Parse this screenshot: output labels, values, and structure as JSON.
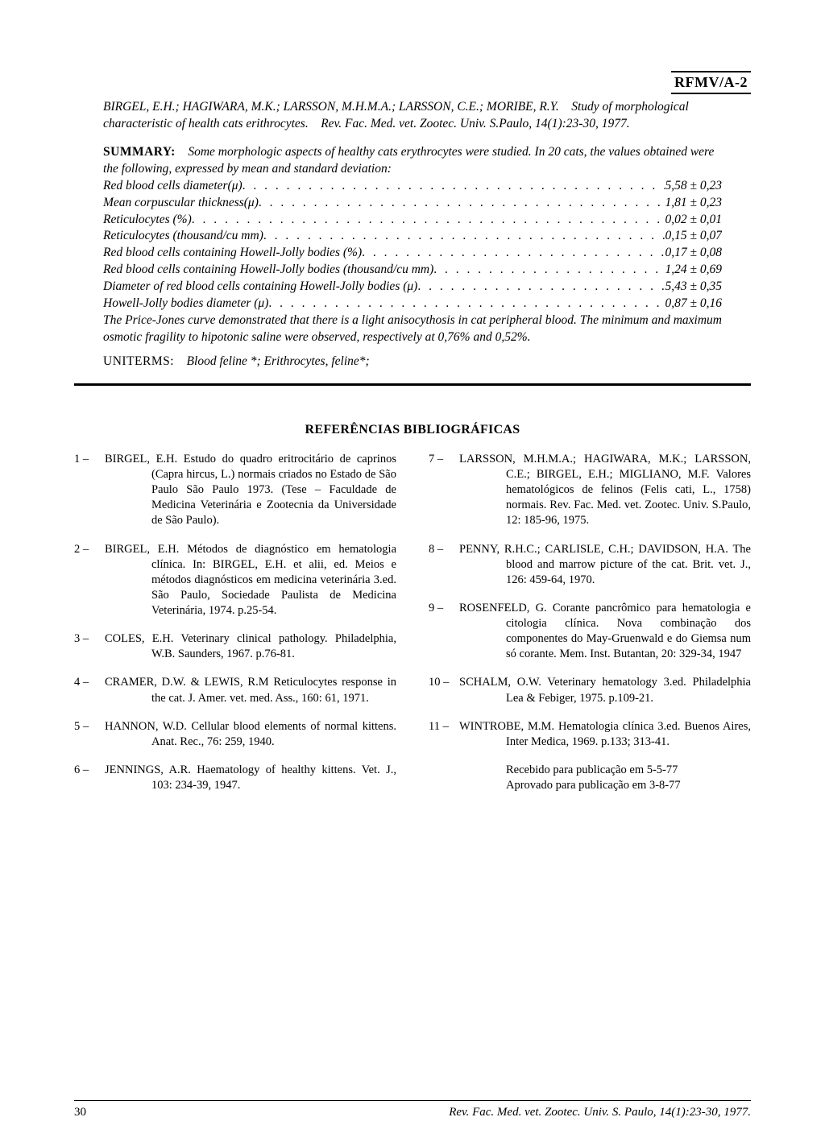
{
  "header": {
    "code": "RFMV/A-2"
  },
  "citation": {
    "authors": "BIRGEL, E.H.; HAGIWARA, M.K.; LARSSON, M.H.M.A.; LARSSON, C.E.; MORIBE, R.Y.",
    "title_line": "Study of morphological characteristic of health cats erithrocytes.",
    "journal_line": "Rev. Fac. Med. vet. Zootec. Univ. S.Paulo, 14(1):23-30, 1977."
  },
  "summary": {
    "label": "SUMMARY:",
    "intro": "Some morphologic aspects of healthy cats erythrocytes were studied. In 20 cats, the values obtained were the following, expressed by mean and standard deviation:",
    "rows": [
      {
        "label": "Red blood cells diameter(μ)",
        "value": "5,58 ± 0,23"
      },
      {
        "label": "Mean corpuscular thickness(μ)",
        "value": "1,81 ± 0,23"
      },
      {
        "label": "Reticulocytes (%)",
        "value": "0,02 ± 0,01"
      },
      {
        "label": "Reticulocytes (thousand/cu mm)",
        "value": "0,15 ± 0,07"
      },
      {
        "label": "Red blood cells containing Howell-Jolly bodies (%)",
        "value": "0,17 ± 0,08"
      },
      {
        "label": "Red blood cells containing Howell-Jolly bodies (thousand/cu mm)",
        "value": "1,24 ± 0,69"
      },
      {
        "label": "Diameter of red blood cells containing Howell-Jolly bodies (μ)",
        "value": "5,43 ± 0,35"
      },
      {
        "label": "Howell-Jolly bodies diameter (μ)",
        "value": "0,87 ± 0,16"
      }
    ],
    "tail": "The Price-Jones curve demonstrated that there is a light anisocythosis in cat peripheral blood. The minimum and maximum osmotic fragility to hipotonic saline were observed, respectively at 0,76% and 0,52%."
  },
  "uniterms": {
    "label": "UNITERMS:",
    "text": "Blood feline *; Erithrocytes, feline*;"
  },
  "refs_title": "REFERÊNCIAS BIBLIOGRÁFICAS",
  "refs_left": [
    {
      "num": "1 –",
      "text": "BIRGEL, E.H.    Estudo do quadro eritrocitário de caprinos (Capra hircus, L.) normais criados no Estado de São Paulo São Paulo 1973.   (Tese – Faculdade de Medicina Veterinária e Zootecnia da Universidade de São Paulo)."
    },
    {
      "num": "2 –",
      "text": "BIRGEL, E.H.    Métodos de diagnóstico em hematologia clínica.  In: BIRGEL, E.H. et alii, ed.   Meios e métodos diagnósticos em medicina veterinária 3.ed. São Paulo, Sociedade Paulista de Medicina Veterinária, 1974. p.25-54."
    },
    {
      "num": "3 –",
      "text": "COLES, E.H.    Veterinary clinical pathology.   Philadelphia, W.B. Saunders, 1967. p.76-81."
    },
    {
      "num": "4 –",
      "text": "CRAMER, D.W. & LEWIS, R.M    Reticulocytes response in the cat.   J. Amer. vet. med. Ass., 160: 61, 1971."
    },
    {
      "num": "5 –",
      "text": "HANNON, W.D.    Cellular blood elements of normal kittens.   Anat. Rec., 76: 259, 1940."
    },
    {
      "num": "6 –",
      "text": "JENNINGS, A.R.    Haematology of healthy kittens.   Vet. J., 103: 234-39, 1947."
    }
  ],
  "refs_right": [
    {
      "num": "7 –",
      "text": "LARSSON, M.H.M.A.; HAGIWARA, M.K.; LARSSON, C.E.; BIRGEL, E.H.; MIGLIANO, M.F.    Valores hematológicos de felinos (Felis cati, L., 1758) normais.   Rev. Fac. Med. vet. Zootec. Univ. S.Paulo, 12: 185-96, 1975."
    },
    {
      "num": "8 –",
      "text": "PENNY, R.H.C.; CARLISLE, C.H.; DAVIDSON, H.A.    The blood and marrow picture of the cat.   Brit. vet. J., 126: 459-64, 1970."
    },
    {
      "num": "9 –",
      "text": "ROSENFELD, G.    Corante pancrômico para hematologia e citologia clínica.  Nova combinação dos componentes do May-Gruenwald e do Giemsa num só corante.   Mem. Inst. Butantan, 20: 329-34, 1947"
    },
    {
      "num": "10 –",
      "text": "SCHALM, O.W.    Veterinary hematology 3.ed.  Philadelphia  Lea & Febiger, 1975. p.109-21."
    },
    {
      "num": "11 –",
      "text": "WINTROBE, M.M.    Hematologia clínica 3.ed. Buenos Aires, Inter Medica, 1969. p.133; 313-41."
    }
  ],
  "received": {
    "line1": "Recebido para publicação em 5-5-77",
    "line2": "Aprovado para publicação em 3-8-77"
  },
  "footer": {
    "page": "30",
    "cite": "Rev. Fac. Med. vet. Zootec. Univ. S. Paulo, 14(1):23-30, 1977."
  }
}
